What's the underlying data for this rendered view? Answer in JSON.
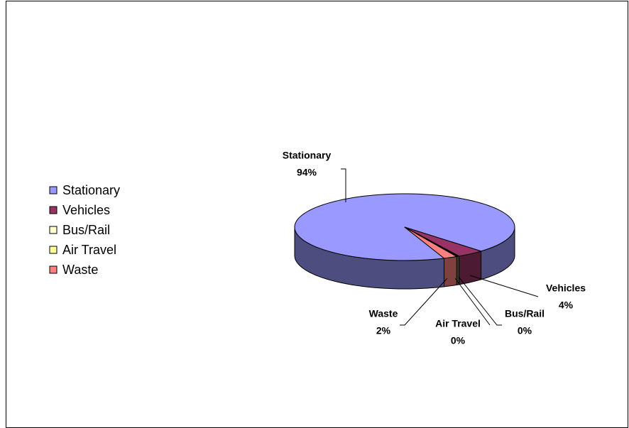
{
  "chart_data": {
    "type": "pie",
    "categories": [
      "Stationary",
      "Vehicles",
      "Bus/Rail",
      "Air Travel",
      "Waste"
    ],
    "values": [
      94,
      4,
      0.2,
      0.2,
      2
    ],
    "value_labels": [
      "94%",
      "4%",
      "0%",
      "0%",
      "2%"
    ],
    "colors": [
      "#9999ff",
      "#993366",
      "#ffffcc",
      "#ffff99",
      "#ff8080"
    ],
    "legend": "left"
  }
}
